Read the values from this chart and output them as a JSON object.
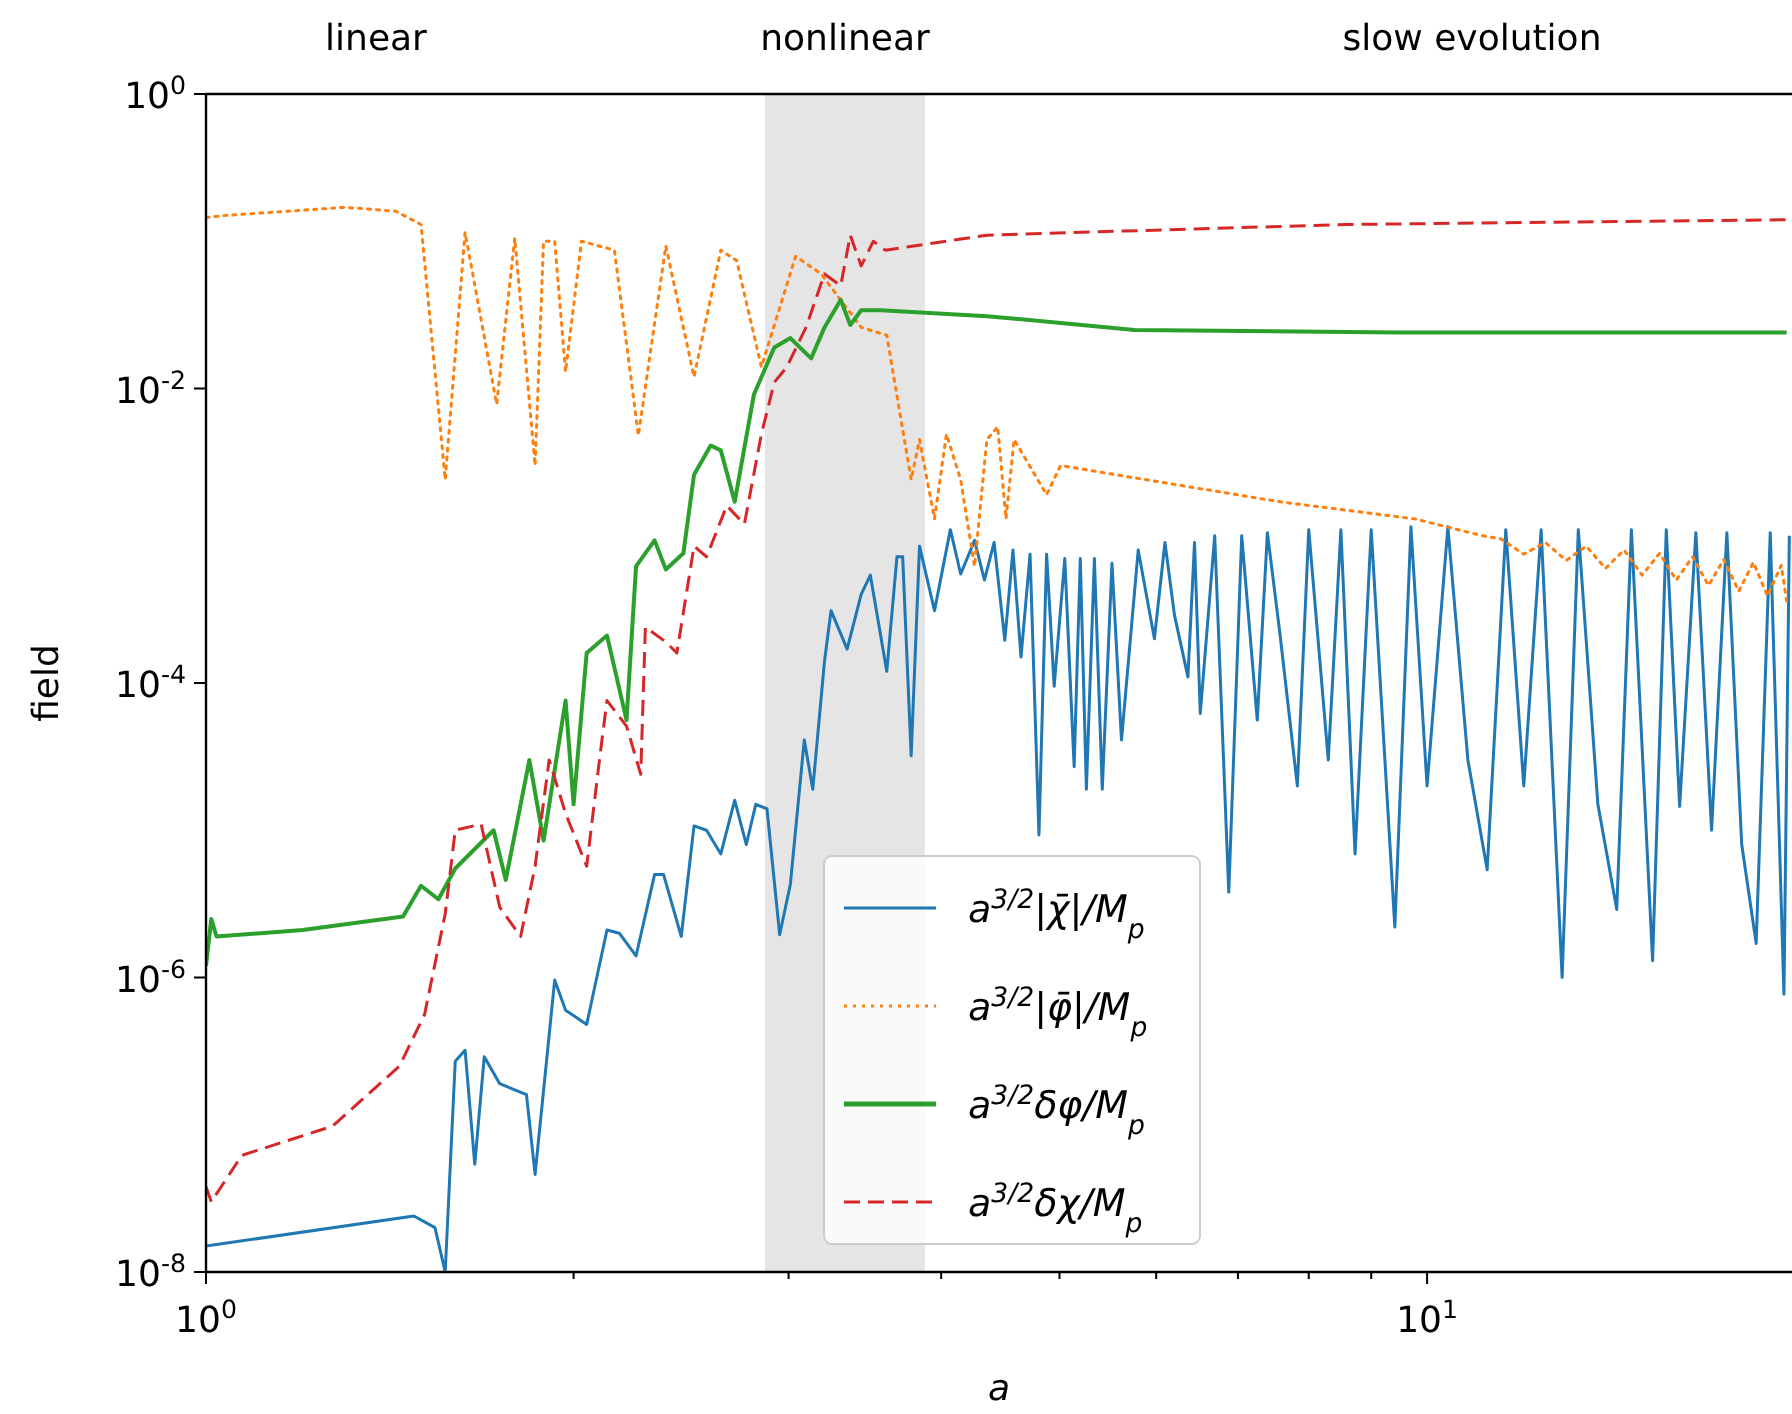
{
  "chart_data": {
    "type": "line",
    "xlabel": "a",
    "ylabel": "field",
    "log": "xy",
    "grid": false,
    "legend": "bottom",
    "xlim": [
      1,
      19.9
    ],
    "ylim": [
      1e-08,
      1
    ],
    "xticks": [
      {
        "value": 1,
        "label": "10$^{0}$"
      },
      {
        "value": 2,
        "label": null
      },
      {
        "value": 3,
        "label": null
      },
      {
        "value": 4,
        "label": null
      },
      {
        "value": 5,
        "label": null
      },
      {
        "value": 6,
        "label": null
      },
      {
        "value": 7,
        "label": null
      },
      {
        "value": 8,
        "label": null
      },
      {
        "value": 9,
        "label": null
      },
      {
        "value": 10,
        "label": "10$^{1}$"
      }
    ],
    "yticks": [
      {
        "value": 1e-08,
        "label": "10$^{-8}$"
      },
      {
        "value": 1e-06,
        "label": "10$^{-6}$"
      },
      {
        "value": 0.0001,
        "label": "10$^{-4}$"
      },
      {
        "value": 0.01,
        "label": "10$^{-2}$"
      },
      {
        "value": 1,
        "label": "10$^{0}$"
      }
    ],
    "bands": [
      {
        "axis": "x",
        "from": 2.87,
        "to": 3.88,
        "color": "#e5e5e5",
        "label": "nonlinear"
      }
    ],
    "annotations": [
      "linear",
      "slow evolution"
    ],
    "series": [
      {
        "name": "a$^{3/2}$|χ̄|/M$_{p}$",
        "color": "#1f77b4",
        "line_style": "solid",
        "x": [
          1,
          1.48,
          1.54,
          1.57,
          1.6,
          1.63,
          1.66,
          1.69,
          1.74,
          1.83,
          1.86,
          1.93,
          1.97,
          2.05,
          2.13,
          2.18,
          2.25,
          2.33,
          2.37,
          2.45,
          2.51,
          2.57,
          2.64,
          2.71,
          2.77,
          2.82,
          2.88,
          2.95,
          3.01,
          3.09,
          3.14,
          3.21,
          3.25,
          3.35,
          3.44,
          3.5,
          3.61,
          3.68,
          3.72,
          3.78,
          3.84,
          3.95,
          4.07,
          4.15,
          4.26,
          4.34,
          4.42,
          4.51,
          4.58,
          4.65,
          4.73,
          4.81,
          4.88,
          4.95,
          5.05,
          5.14,
          5.2,
          5.26,
          5.34,
          5.42,
          5.52,
          5.62,
          5.8,
          5.98,
          6.1,
          6.21,
          6.37,
          6.45,
          6.52,
          6.7,
          6.88,
          7.05,
          7.26,
          7.4,
          7.58,
          7.83,
          8.0,
          8.3,
          8.5,
          8.73,
          9.0,
          9.41,
          9.7,
          10.0,
          10.4,
          10.8,
          11.2,
          11.6,
          12.0,
          12.4,
          12.9,
          13.3,
          13.8,
          14.3,
          14.7,
          15.3,
          15.7,
          16.1,
          16.6,
          17.1,
          17.6,
          18.1,
          18.6,
          19.1,
          19.6,
          19.8
        ],
        "values": [
          1.5e-08,
          2.4e-08,
          2e-08,
          1e-08,
          2.7e-07,
          3.2e-07,
          5.4e-08,
          2.9e-07,
          1.9e-07,
          1.6e-07,
          4.6e-08,
          9.6e-07,
          6e-07,
          4.8e-07,
          2.1e-06,
          2e-06,
          1.4e-06,
          5e-06,
          5e-06,
          1.9e-06,
          1.07e-05,
          1e-05,
          6.9e-06,
          1.6e-05,
          8e-06,
          1.5e-05,
          1.4e-05,
          1.95e-06,
          4.3e-06,
          4.1e-05,
          1.9e-05,
          0.00014,
          0.00031,
          0.00017,
          0.0004,
          0.00054,
          0.00012,
          0.00072,
          0.00072,
          3.2e-05,
          0.00085,
          0.00031,
          0.0011,
          0.00055,
          0.00093,
          0.0005,
          0.0009,
          0.000195,
          0.0008,
          0.00015,
          0.00075,
          9.3e-06,
          0.00075,
          9.5e-05,
          0.0007,
          2.7e-05,
          0.0007,
          1.9e-05,
          0.0007,
          1.9e-05,
          0.00065,
          4.1e-05,
          0.0008,
          0.0002,
          0.0009,
          0.00029,
          0.00011,
          0.0009,
          6.2e-05,
          0.001,
          3.8e-06,
          0.001,
          5.6e-05,
          0.00105,
          0.00021,
          2e-05,
          0.0011,
          3e-05,
          0.0011,
          6.9e-06,
          0.0011,
          2.2e-06,
          0.00115,
          2e-05,
          0.00115,
          3e-05,
          5.4e-06,
          0.0011,
          2e-05,
          0.0011,
          1e-06,
          0.0011,
          1.5e-05,
          2.9e-06,
          0.0011,
          1.3e-06,
          0.0011,
          1.45e-05,
          0.00105,
          1e-05,
          0.00105,
          8e-06,
          1.7e-06,
          0.00105,
          7.7e-07,
          0.001
        ]
      },
      {
        "name": "a$^{3/2}$|φ̄|/M$_{p}$",
        "color": "#ff7f0e",
        "line_style": "dotted",
        "x": [
          1,
          1.04,
          1.3,
          1.43,
          1.5,
          1.57,
          1.63,
          1.73,
          1.79,
          1.86,
          1.89,
          1.93,
          1.97,
          2.03,
          2.16,
          2.26,
          2.38,
          2.51,
          2.64,
          2.72,
          2.85,
          3.04,
          3.19,
          3.44,
          3.61,
          3.78,
          3.84,
          3.95,
          4.04,
          4.15,
          4.26,
          4.36,
          4.45,
          4.52,
          4.59,
          4.88,
          5.01,
          5.89,
          7.58,
          9.78,
          11.1,
          11.5,
          12,
          12.5,
          13,
          13.5,
          14,
          14.5,
          15,
          15.5,
          16,
          16.5,
          17,
          17.5,
          18,
          18.5,
          19,
          19.5,
          19.7
        ],
        "values": [
          0.145,
          0.15,
          0.17,
          0.16,
          0.13,
          0.0024,
          0.115,
          0.0078,
          0.105,
          0.003,
          0.1,
          0.1,
          0.013,
          0.1,
          0.087,
          0.0048,
          0.093,
          0.012,
          0.087,
          0.074,
          0.014,
          0.079,
          0.06,
          0.026,
          0.023,
          0.0024,
          0.0045,
          0.0013,
          0.0049,
          0.0024,
          0.00062,
          0.0045,
          0.0055,
          0.0013,
          0.0045,
          0.0019,
          0.003,
          0.0024,
          0.0017,
          0.0013,
          0.001,
          0.00095,
          0.00075,
          0.0009,
          0.00068,
          0.00085,
          0.0006,
          0.0008,
          0.00054,
          0.00076,
          0.0005,
          0.00072,
          0.00046,
          0.00069,
          0.00042,
          0.00066,
          0.00039,
          0.00063,
          0.00036
        ]
      },
      {
        "name": "a$^{3/2}$δφ/M$_{p}$",
        "color": "#2ca02c",
        "line_style": "solid",
        "x": [
          1,
          1.01,
          1.02,
          1.2,
          1.45,
          1.5,
          1.55,
          1.6,
          1.72,
          1.76,
          1.84,
          1.89,
          1.97,
          2.0,
          2.05,
          2.13,
          2.21,
          2.25,
          2.33,
          2.38,
          2.46,
          2.51,
          2.59,
          2.64,
          2.71,
          2.81,
          2.92,
          3.01,
          3.13,
          3.21,
          3.31,
          3.37,
          3.44,
          3.57,
          4.36,
          5.76,
          9.5,
          19.7
        ],
        "values": [
          1.2e-06,
          2.5e-06,
          1.9e-06,
          2.1e-06,
          2.6e-06,
          4.2e-06,
          3.4e-06,
          5.5e-06,
          1e-05,
          4.6e-06,
          3e-05,
          8.5e-06,
          7.6e-05,
          1.5e-05,
          0.00016,
          0.00021,
          5.6e-05,
          0.00062,
          0.00093,
          0.00059,
          0.00076,
          0.0026,
          0.0041,
          0.0038,
          0.0017,
          0.0091,
          0.019,
          0.022,
          0.016,
          0.026,
          0.04,
          0.027,
          0.034,
          0.034,
          0.031,
          0.025,
          0.024,
          0.024
        ]
      },
      {
        "name": "a$^{3/2}$δχ/M$_{p}$",
        "color": "#d62728",
        "line_style": "dashed",
        "x": [
          1,
          1.01,
          1.07,
          1.27,
          1.44,
          1.51,
          1.57,
          1.6,
          1.68,
          1.74,
          1.81,
          1.86,
          1.91,
          1.97,
          2.05,
          2.1,
          2.13,
          2.21,
          2.27,
          2.29,
          2.38,
          2.43,
          2.51,
          2.57,
          2.67,
          2.76,
          2.85,
          2.92,
          2.99,
          3.1,
          3.21,
          3.31,
          3.37,
          3.44,
          3.52,
          3.6,
          4.36,
          5.21,
          8.6,
          19.7
        ],
        "values": [
          3.8e-08,
          3e-08,
          6.2e-08,
          9.8e-08,
          2.5e-07,
          5.6e-07,
          2.7e-06,
          1e-05,
          1.1e-05,
          3e-06,
          1.9e-06,
          5.7e-06,
          3e-05,
          1.3e-05,
          5.7e-06,
          3e-05,
          7.6e-05,
          5.1e-05,
          2.4e-05,
          0.00024,
          0.00019,
          0.00016,
          0.00085,
          0.00072,
          0.0016,
          0.0012,
          0.0049,
          0.011,
          0.014,
          0.026,
          0.06,
          0.05,
          0.11,
          0.068,
          0.1,
          0.087,
          0.11,
          0.115,
          0.13,
          0.14
        ]
      }
    ]
  }
}
